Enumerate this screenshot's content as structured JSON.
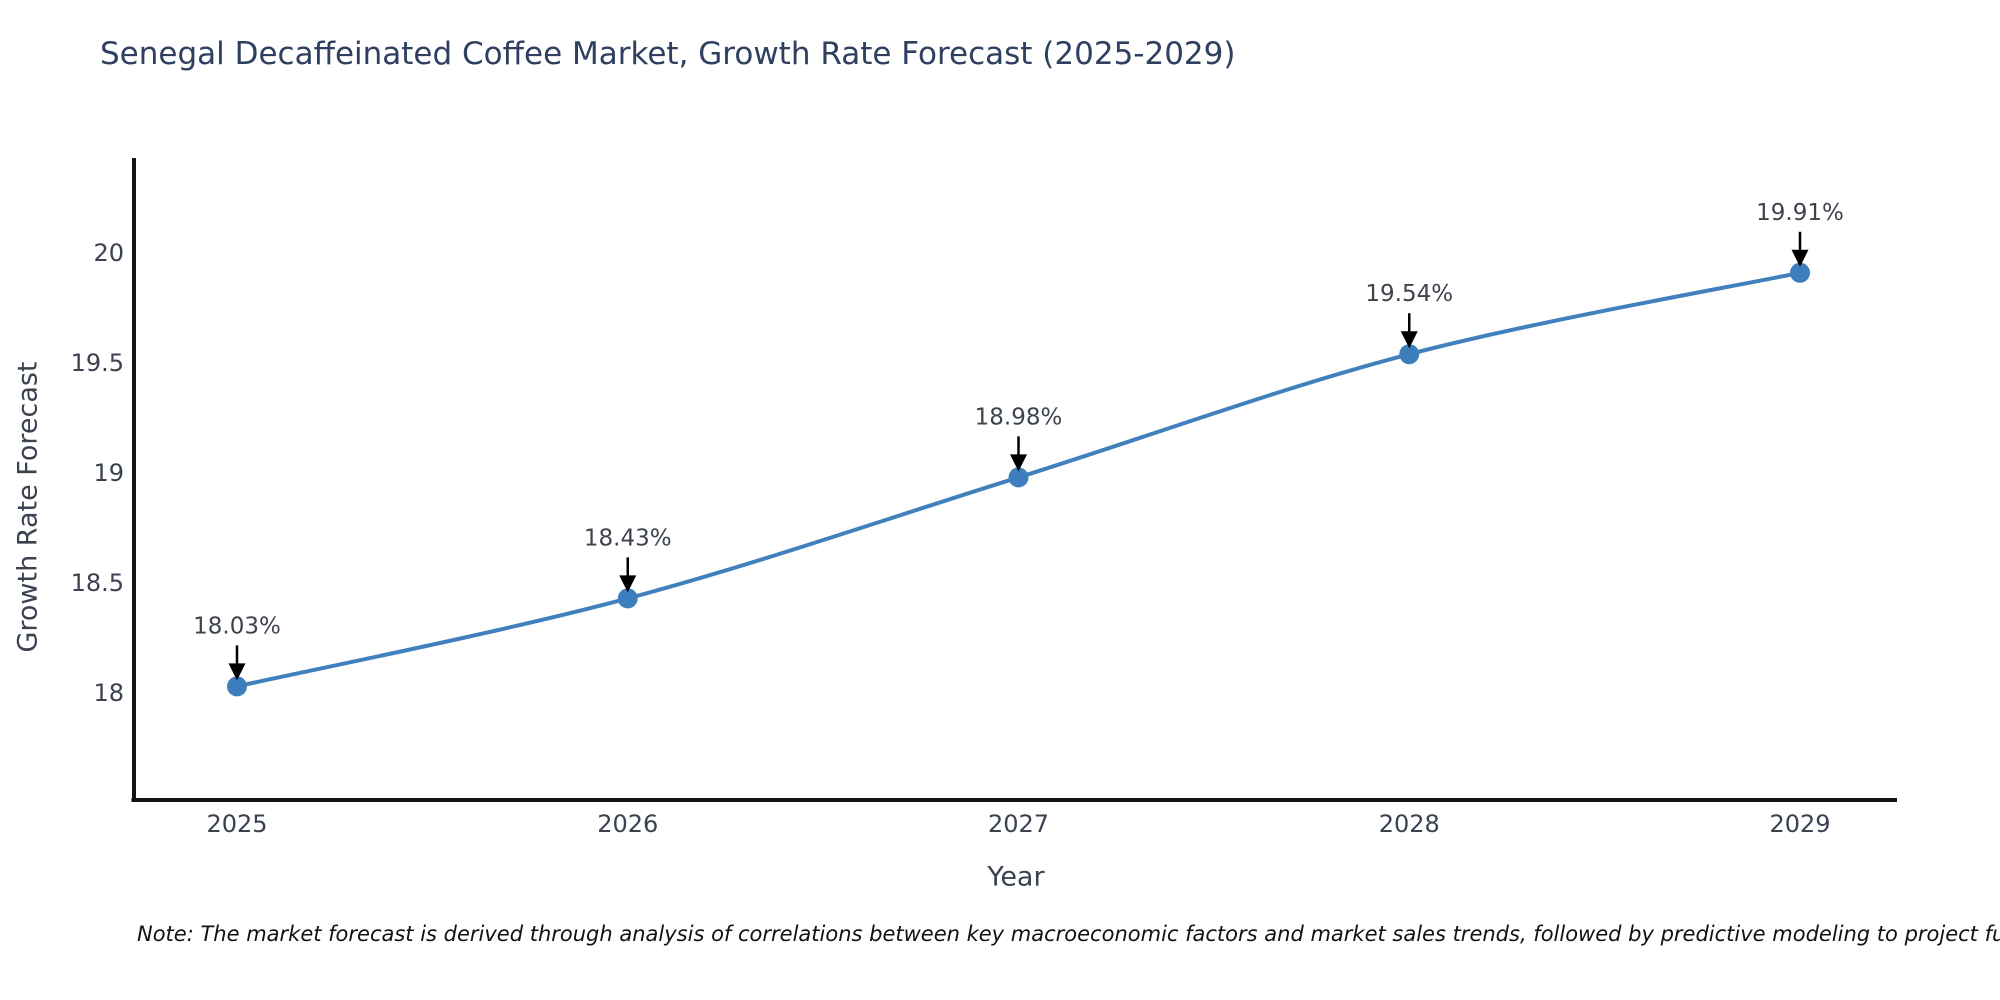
{
  "title": "Senegal Decaffeinated Coffee Market, Growth Rate Forecast (2025-2029)",
  "axes": {
    "x_title": "Year",
    "y_title": "Growth Rate Forecast"
  },
  "note": "Note: The market forecast is derived through analysis of correlations between key macroeconomic factors and market sales trends, followed by predictive modeling to project future sal",
  "chart_data": {
    "type": "line",
    "title": "Senegal Decaffeinated Coffee Market, Growth Rate Forecast (2025-2029)",
    "xlabel": "Year",
    "ylabel": "Growth Rate Forecast",
    "x": [
      2025,
      2026,
      2027,
      2028,
      2029
    ],
    "values": [
      18.03,
      18.43,
      18.98,
      19.54,
      19.91
    ],
    "point_labels": [
      "18.03%",
      "18.43%",
      "18.98%",
      "19.54%",
      "19.91%"
    ],
    "yticks": [
      18,
      18.5,
      19,
      19.5,
      20
    ],
    "ylim": [
      17.51,
      20.42
    ],
    "grid": false,
    "legend": false,
    "colors": {
      "line": "#4080bd",
      "marker": "#3d7ebd",
      "spine": "#141414",
      "tick_label": "#3a4250",
      "annotation_text": "#3d434d",
      "annotation_arrow": "#000000"
    }
  }
}
